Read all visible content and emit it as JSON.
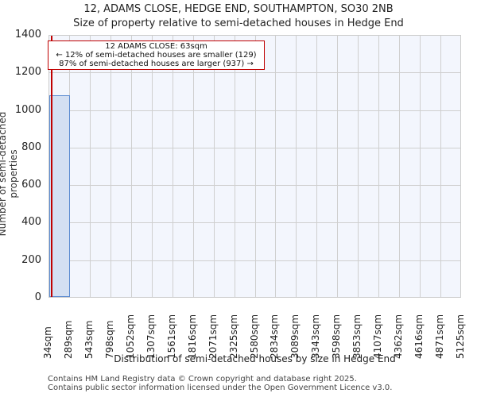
{
  "header": {
    "title_line1": "12, ADAMS CLOSE, HEDGE END, SOUTHAMPTON, SO30 2NB",
    "title_line2": "Size of property relative to semi-detached houses in Hedge End"
  },
  "annotation": {
    "line1": "12 ADAMS CLOSE: 63sqm",
    "line2": "← 12% of semi-detached houses are smaller (129)",
    "line3": "87% of semi-detached houses are larger (937) →"
  },
  "footer": {
    "line1": "Contains HM Land Registry data © Crown copyright and database right 2025.",
    "line2": "Contains public sector information licensed under the Open Government Licence v3.0."
  },
  "colors": {
    "bar_fill": "#d3dff2",
    "bar_edge": "#5a8ad0",
    "marker": "#c00000",
    "plot_bg": "#f3f6fd"
  },
  "chart_data": {
    "type": "bar",
    "title": "12, ADAMS CLOSE, HEDGE END, SOUTHAMPTON, SO30 2NB\nSize of property relative to semi-detached houses in Hedge End",
    "xlabel": "Distribution of semi-detached houses by size in Hedge End",
    "ylabel": "Number of semi-detached properties",
    "ylim": [
      0,
      1400
    ],
    "yticks": [
      0,
      200,
      400,
      600,
      800,
      1000,
      1200,
      1400
    ],
    "bin_edges_labels": [
      "34sqm",
      "289sqm",
      "543sqm",
      "798sqm",
      "1052sqm",
      "1307sqm",
      "1561sqm",
      "1816sqm",
      "2071sqm",
      "2325sqm",
      "2580sqm",
      "2834sqm",
      "3089sqm",
      "3343sqm",
      "3598sqm",
      "3853sqm",
      "4107sqm",
      "4362sqm",
      "4616sqm",
      "4871sqm",
      "5125sqm"
    ],
    "categories": [
      "34-289",
      "289-543",
      "543-798",
      "798-1052",
      "1052-1307",
      "1307-1561",
      "1561-1816",
      "1816-2071",
      "2071-2325",
      "2325-2580",
      "2580-2834",
      "2834-3089",
      "3089-3343",
      "3343-3598",
      "3598-3853",
      "3853-4107",
      "4107-4362",
      "4362-4616",
      "4616-4871",
      "4871-5125"
    ],
    "values": [
      1075,
      0,
      0,
      0,
      0,
      0,
      0,
      0,
      0,
      0,
      0,
      0,
      0,
      0,
      0,
      0,
      0,
      0,
      0,
      0
    ],
    "marker": {
      "x": 63,
      "label": "12 ADAMS CLOSE: 63sqm"
    },
    "grid": true,
    "legend": null
  }
}
